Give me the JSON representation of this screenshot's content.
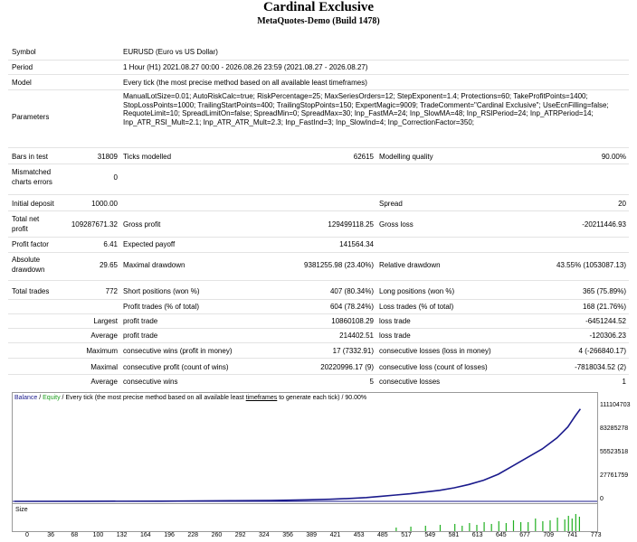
{
  "report": {
    "title": "Cardinal Exclusive",
    "subtitle": "MetaQuotes-Demo (Build 1478)"
  },
  "header_rows": {
    "symbol_label": "Symbol",
    "symbol_value": "EURUSD (Euro vs US Dollar)",
    "period_label": "Period",
    "period_value": "1 Hour (H1) 2021.08.27 00:00 - 2026.08.26 23:59 (2021.08.27 - 2026.08.27)",
    "model_label": "Model",
    "model_value": "Every tick (the most precise method based on all available least timeframes)",
    "parameters_label": "Parameters",
    "parameters_value": "ManualLotSize=0.01; AutoRiskCalc=true; RiskPercentage=25; MaxSeriesOrders=12; StepExponent=1.4; Protections=60; TakeProfitPoints=1400; StopLossPoints=1000; TrailingStartPoints=400; TrailingStopPoints=150; ExpertMagic=9009; TradeComment=\"Cardinal Exclusive\"; UseEcnFilling=false; RequoteLimit=10; SpreadLimitOn=false; SpreadMin=0; SpreadMax=30; Inp_FastMA=24; Inp_SlowMA=48; Inp_RSIPeriod=24; Inp_ATRPeriod=14; Inp_ATR_RSI_Mult=2.1; Inp_ATR_ATR_Mult=2.3; Inp_FastInd=3; Inp_SlowInd=4; Inp_CorrectionFactor=350;"
  },
  "stats": {
    "bars_label": "Bars in test",
    "bars_value": "31809",
    "ticks_label": "Ticks modelled",
    "ticks_value": "62615",
    "quality_label": "Modelling quality",
    "quality_value": "90.00%",
    "mismatch_label_1": "Mismatched",
    "mismatch_label_2": "charts errors",
    "mismatch_value": "0",
    "deposit_label": "Initial deposit",
    "deposit_value": "1000.00",
    "spread_label": "Spread",
    "spread_value": "20",
    "netprofit_label_1": "Total net",
    "netprofit_label_2": "profit",
    "netprofit_value": "109287671.32",
    "grossprofit_label": "Gross profit",
    "grossprofit_value": "129499118.25",
    "grossloss_label": "Gross loss",
    "grossloss_value": "-20211446.93",
    "pf_label": "Profit factor",
    "pf_value": "6.41",
    "payoff_label": "Expected payoff",
    "payoff_value": "141564.34",
    "absdd_label_1": "Absolute",
    "absdd_label_2": "drawdown",
    "absdd_value": "29.65",
    "maxdd_label": "Maximal drawdown",
    "maxdd_value": "9381255.98 (23.40%)",
    "reldd_label": "Relative drawdown",
    "reldd_value": "43.55% (1053087.13)",
    "trades_label": "Total trades",
    "trades_value": "772",
    "short_label": "Short positions (won %)",
    "short_value": "407 (80.34%)",
    "long_label": "Long positions (won %)",
    "long_value": "365 (75.89%)",
    "profit_trades_label": "Profit trades (% of total)",
    "profit_trades_value": "604 (78.24%)",
    "loss_trades_label": "Loss trades (% of total)",
    "loss_trades_value": "168 (21.76%)",
    "largest_label": "Largest",
    "largest_profit_label": "profit trade",
    "largest_profit_value": "10860108.29",
    "largest_loss_label": "loss trade",
    "largest_loss_value": "-6451244.52",
    "average_label": "Average",
    "average_profit_label": "profit trade",
    "average_profit_value": "214402.51",
    "average_loss_label": "loss trade",
    "average_loss_value": "-120306.23",
    "maximum_label": "Maximum",
    "max_cons_wins_label": "consecutive wins (profit in money)",
    "max_cons_wins_value": "17 (7332.91)",
    "max_cons_losses_label": "consecutive losses (loss in money)",
    "max_cons_losses_value": "4 (-266840.17)",
    "maximal_label": "Maximal",
    "maximal_cons_profit_label": "consecutive profit (count of wins)",
    "maximal_cons_profit_value": "20220996.17 (9)",
    "maximal_cons_loss_label": "consecutive loss (count of losses)",
    "maximal_cons_loss_value": "-7818034.52 (2)",
    "avg2_label": "Average",
    "avg_cons_wins_label": "consecutive wins",
    "avg_cons_wins_value": "5",
    "avg_cons_losses_label": "consecutive losses",
    "avg_cons_losses_value": "1"
  },
  "colors": {
    "balance": "#1a1a8c",
    "equity": "#1e9e1e",
    "size_bars": "#22b022"
  },
  "chart_legend": {
    "balance": "Balance",
    "sep1": " / ",
    "equity": "Equity",
    "rest_pre": " / Every tick (the most precise method based on all available least ",
    "rest_link": "timeframes",
    "rest_post": " to generate each tick) / 90.00%"
  },
  "size_label": "Size",
  "chart_data": {
    "type": "line",
    "title": "",
    "xlabel": "",
    "ylabel": "",
    "x_ticks": [
      "0",
      "36",
      "68",
      "100",
      "132",
      "164",
      "196",
      "228",
      "260",
      "292",
      "324",
      "356",
      "389",
      "421",
      "453",
      "485",
      "517",
      "549",
      "581",
      "613",
      "645",
      "677",
      "709",
      "741",
      "773"
    ],
    "y_ticks": [
      "111104703",
      "83285278",
      "55523518",
      "27761759",
      "0"
    ],
    "xlim": [
      0,
      790
    ],
    "ylim": [
      0,
      111104703
    ],
    "series": [
      {
        "name": "Balance",
        "x": [
          0,
          100,
          200,
          300,
          350,
          400,
          430,
          460,
          480,
          500,
          520,
          540,
          560,
          580,
          600,
          620,
          640,
          660,
          680,
          700,
          720,
          740,
          755,
          765,
          772
        ],
        "values": [
          1000,
          60000,
          250000,
          700000,
          1100000,
          1800000,
          2500000,
          3500000,
          4500000,
          6000000,
          7500000,
          9000000,
          11000000,
          13000000,
          16000000,
          20000000,
          25000000,
          32000000,
          42000000,
          52000000,
          62000000,
          75000000,
          88000000,
          101000000,
          109288671
        ]
      }
    ],
    "size_bars_x": [
      520,
      540,
      560,
      580,
      600,
      610,
      620,
      630,
      640,
      650,
      660,
      670,
      680,
      690,
      700,
      710,
      720,
      730,
      740,
      750,
      755,
      760,
      765,
      770
    ],
    "size_bars_values": [
      0.2,
      0.25,
      0.3,
      0.35,
      0.4,
      0.3,
      0.45,
      0.35,
      0.5,
      0.4,
      0.55,
      0.45,
      0.6,
      0.5,
      0.5,
      0.7,
      0.55,
      0.6,
      0.75,
      0.65,
      0.85,
      0.7,
      0.95,
      0.8
    ]
  }
}
